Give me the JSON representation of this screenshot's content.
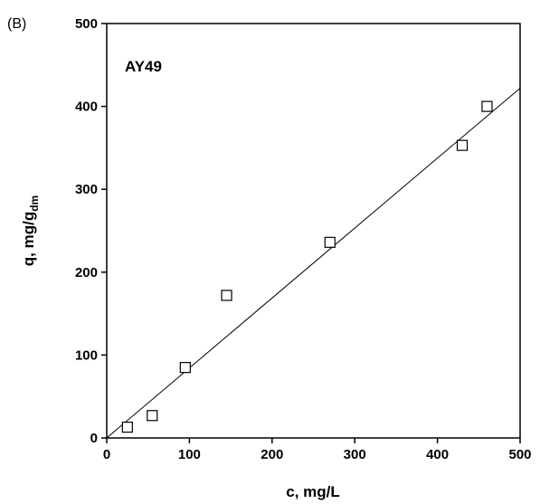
{
  "panel_label": "(B)",
  "chart_data": {
    "type": "scatter",
    "xlabel": "c, mg/L",
    "ylabel_main": "q, mg/g",
    "ylabel_sub": "dm",
    "annotation": "AY49",
    "xlim": [
      0,
      500
    ],
    "ylim": [
      0,
      500
    ],
    "xticks": [
      0,
      100,
      200,
      300,
      400,
      500
    ],
    "yticks": [
      0,
      100,
      200,
      300,
      400,
      500
    ],
    "xtick_labels": [
      "0",
      "100",
      "200",
      "300",
      "400",
      "500"
    ],
    "ytick_labels": [
      "0",
      "100",
      "200",
      "300",
      "400",
      "500"
    ],
    "grid": false,
    "series": [
      {
        "marker": "open-square",
        "x": [
          25,
          55,
          95,
          145,
          270,
          430,
          460
        ],
        "y": [
          13,
          27,
          85,
          172,
          236,
          353,
          400
        ]
      }
    ],
    "fit_line": {
      "x": [
        0,
        500
      ],
      "y": [
        0,
        422
      ]
    }
  }
}
